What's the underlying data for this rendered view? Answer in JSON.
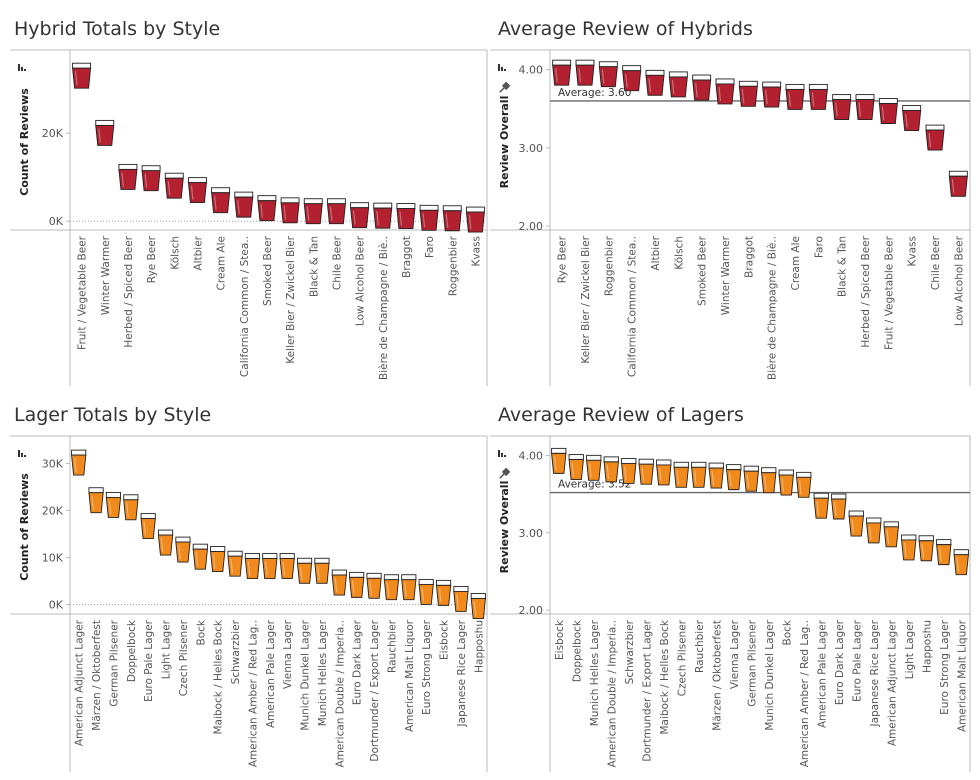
{
  "colors": {
    "hybrid_beer": "#b3202f",
    "lager_beer": "#f08a1c",
    "frame": "#bbbbbb",
    "ref_line": "#666666"
  },
  "chart_data": [
    {
      "id": "hybrid-totals",
      "type": "bar",
      "title": "Hybrid Totals by Style",
      "ylabel": "Count of Reviews",
      "ylim": [
        -2000,
        38000
      ],
      "ticks": [
        "0K",
        "20K"
      ],
      "tick_values": [
        0,
        20000
      ],
      "categories": [
        "Fruit / Vegetable Beer",
        "Winter Warmer",
        "Herbed / Spiced Beer",
        "Rye Beer",
        "Kölsch",
        "Altbier",
        "Cream Ale",
        "California Common / Stea..",
        "Smoked Beer",
        "Keller Bier / Zwickel Bier",
        "Black & Tan",
        "Chile Beer",
        "Low Alcohol Beer",
        "Bière de Champagne / Biè..",
        "Braggot",
        "Faro",
        "Roggenbier",
        "Kvass"
      ],
      "values": [
        35000,
        22000,
        12000,
        11700,
        10000,
        9000,
        6700,
        5700,
        4900,
        4400,
        4200,
        4200,
        3300,
        3200,
        3100,
        2700,
        2600,
        2300
      ]
    },
    {
      "id": "hybrid-avg",
      "type": "bar",
      "title": "Average Review of Hybrids",
      "ylabel": "Review Overall",
      "ylim": [
        1.95,
        4.2
      ],
      "ticks": [
        "2.00",
        "3.00",
        "4.00"
      ],
      "tick_values": [
        2,
        3,
        4
      ],
      "average": 3.6,
      "average_label": "Average: 3.60",
      "categories": [
        "Rye Beer",
        "Keller Bier / Zwickel Bier",
        "Roggenbier",
        "California Common / Stea..",
        "Altbier",
        "Kölsch",
        "Smoked Beer",
        "Winter Warmer",
        "Braggot",
        "Bière de Champagne / Biè..",
        "Cream Ale",
        "Faro",
        "Black & Tan",
        "Herbed / Spiced Beer",
        "Fruit / Vegetable Beer",
        "Kvass",
        "Chile Beer",
        "Low Alcohol Beer"
      ],
      "values": [
        4.07,
        4.07,
        4.05,
        4.0,
        3.94,
        3.92,
        3.88,
        3.83,
        3.8,
        3.79,
        3.76,
        3.76,
        3.63,
        3.63,
        3.58,
        3.49,
        3.24,
        2.65
      ]
    },
    {
      "id": "lager-totals",
      "type": "bar",
      "title": "Lager Totals by Style",
      "ylabel": "Count of Reviews",
      "ylim": [
        -2000,
        35000
      ],
      "ticks": [
        "0K",
        "10K",
        "20K",
        "30K"
      ],
      "tick_values": [
        0,
        10000,
        20000,
        30000
      ],
      "categories": [
        "American Adjunct Lager",
        "Märzen / Oktoberfest",
        "German Pilsener",
        "Doppelbock",
        "Euro Pale Lager",
        "Light Lager",
        "Czech Pilsener",
        "Bock",
        "Maibock / Helles Bock",
        "Schwarzbier",
        "American Amber / Red Lag..",
        "American Pale Lager",
        "Vienna Lager",
        "Munich Dunkel Lager",
        "Munich Helles Lager",
        "American Double / Imperia..",
        "Euro Dark Lager",
        "Dortmunder / Export Lager",
        "Rauchbier",
        "American Malt Liquor",
        "Euro Strong Lager",
        "Eisbock",
        "Japanese Rice Lager",
        "Happoshu"
      ],
      "values": [
        32000,
        24000,
        23000,
        22500,
        18500,
        15000,
        13500,
        12000,
        11500,
        10500,
        10000,
        10000,
        10000,
        9000,
        9000,
        6500,
        6000,
        5800,
        5500,
        5500,
        4500,
        4300,
        3000,
        1500
      ]
    },
    {
      "id": "lager-avg",
      "type": "bar",
      "title": "Average Review of Lagers",
      "ylabel": "Review Overall",
      "ylim": [
        1.95,
        4.2
      ],
      "ticks": [
        "2.00",
        "3.00",
        "4.00"
      ],
      "tick_values": [
        2,
        3,
        4
      ],
      "average": 3.52,
      "average_label": "Average: 3.52",
      "categories": [
        "Eisbock",
        "Doppelbock",
        "Munich Helles Lager",
        "American Double / Imperia..",
        "Schwarzbier",
        "Dortmunder / Export Lager",
        "Maibock / Helles Bock",
        "Czech Pilsener",
        "Rauchbier",
        "Märzen / Oktoberfest",
        "Vienna Lager",
        "German Pilsener",
        "Munich Dunkel Lager",
        "Bock",
        "American Amber / Red Lag..",
        "American Pale Lager",
        "Euro Dark Lager",
        "Euro Pale Lager",
        "Japanese Rice Lager",
        "American Adjunct Lager",
        "Light Lager",
        "Happoshu",
        "Euro Strong Lager",
        "American Malt Liquor"
      ],
      "values": [
        4.04,
        3.96,
        3.95,
        3.93,
        3.91,
        3.9,
        3.89,
        3.86,
        3.86,
        3.85,
        3.83,
        3.81,
        3.79,
        3.76,
        3.73,
        3.46,
        3.45,
        3.23,
        3.14,
        3.09,
        2.92,
        2.91,
        2.86,
        2.73
      ]
    }
  ]
}
